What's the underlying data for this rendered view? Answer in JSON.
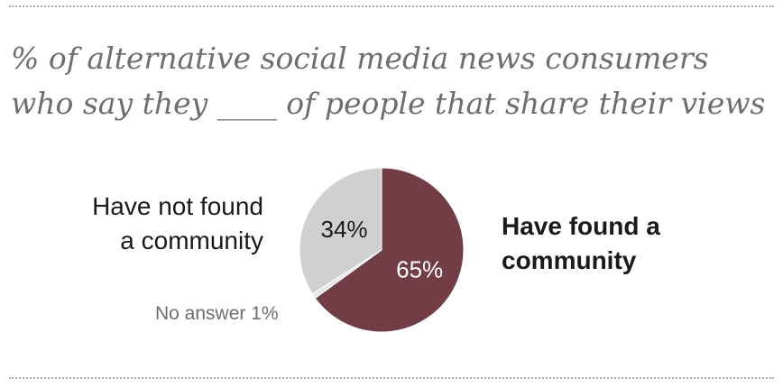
{
  "header": {
    "title_line1": "% of alternative social media news consumers",
    "title_line2": "who say they ____ of people that share their views"
  },
  "colors": {
    "found": "#733d46",
    "not_found": "#d0d0d0",
    "no_answer": "#e6e6e6"
  },
  "chart_data": {
    "type": "pie",
    "slices": [
      {
        "name": "Have found a community",
        "value": 65,
        "label": "65%"
      },
      {
        "name": "No answer",
        "value": 1,
        "label": "No answer 1%"
      },
      {
        "name": "Have not found a community",
        "value": 34,
        "label": "34%"
      }
    ],
    "outside_labels": {
      "not_found_line1": "Have not found",
      "not_found_line2": "a community",
      "found_line1": "Have found a",
      "found_line2": "community",
      "no_answer": "No answer 1%"
    }
  }
}
